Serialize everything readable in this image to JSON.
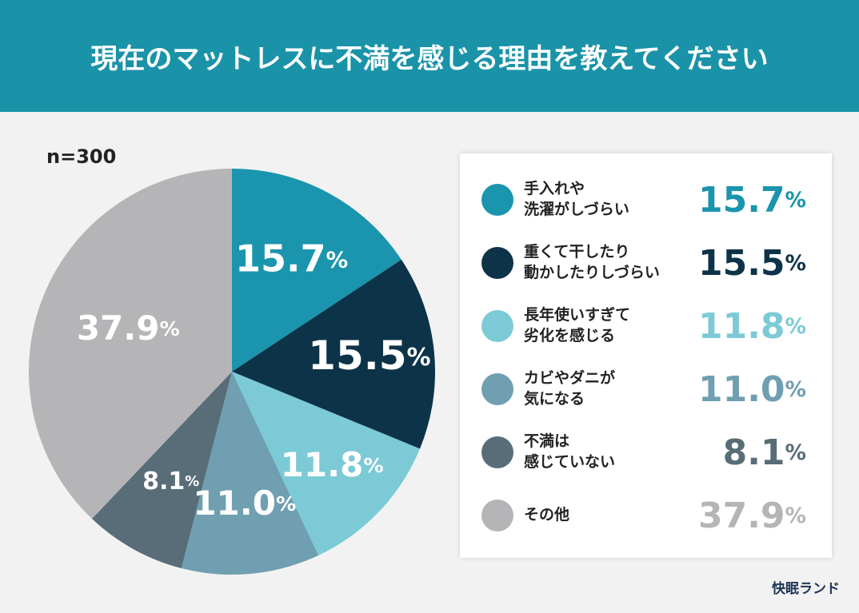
{
  "chart_data": {
    "type": "pie",
    "title": "現在のマットレスに不満を感じる理由を教えてください",
    "subtitle": "n=300",
    "categories": [
      "手入れや\n洗濯がしづらい",
      "重くて干したり\n動かしたりしづらい",
      "長年使いすぎて\n劣化を感じる",
      "カビやダニが\n気になる",
      "不満は\n感じていない",
      "その他"
    ],
    "values": [
      15.7,
      15.5,
      11.8,
      11.0,
      8.1,
      37.9
    ],
    "value_labels": [
      "15.7%",
      "15.5%",
      "11.8%",
      "11.0%",
      "8.1%",
      "37.9%"
    ],
    "colors": [
      "#1a95ad",
      "#0d3349",
      "#7ccad6",
      "#6f9fb1",
      "#586d78",
      "#b5b5b7"
    ],
    "source": "快眠ランド"
  }
}
